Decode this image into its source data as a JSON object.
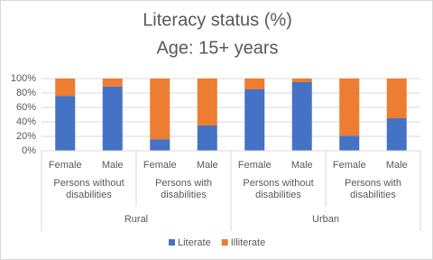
{
  "chart_data": {
    "type": "bar",
    "stacked": true,
    "title": "Literacy status (%)",
    "subtitle": "Age: 15+ years",
    "categories": [
      "Female",
      "Male",
      "Female",
      "Male",
      "Female",
      "Male",
      "Female",
      "Male"
    ],
    "groups": [
      "Persons without disabilities",
      "Persons with disabilities",
      "Persons without disabilities",
      "Persons with disabilities"
    ],
    "regions": [
      "Rural",
      "Urban"
    ],
    "series": [
      {
        "name": "Literate",
        "color": "#4472c4",
        "values": [
          76,
          89,
          16,
          35,
          85,
          95,
          21,
          45
        ]
      },
      {
        "name": "Illiterate",
        "color": "#ed7d31",
        "values": [
          24,
          11,
          84,
          65,
          15,
          5,
          79,
          55
        ]
      }
    ],
    "ylim": [
      0,
      100
    ],
    "yticks": [
      {
        "value": 0,
        "label": "0%"
      },
      {
        "value": 20,
        "label": "20%"
      },
      {
        "value": 40,
        "label": "40%"
      },
      {
        "value": 60,
        "label": "60%"
      },
      {
        "value": 80,
        "label": "80%"
      },
      {
        "value": 100,
        "label": "100%"
      }
    ],
    "grid": true,
    "legend": "bottom"
  }
}
